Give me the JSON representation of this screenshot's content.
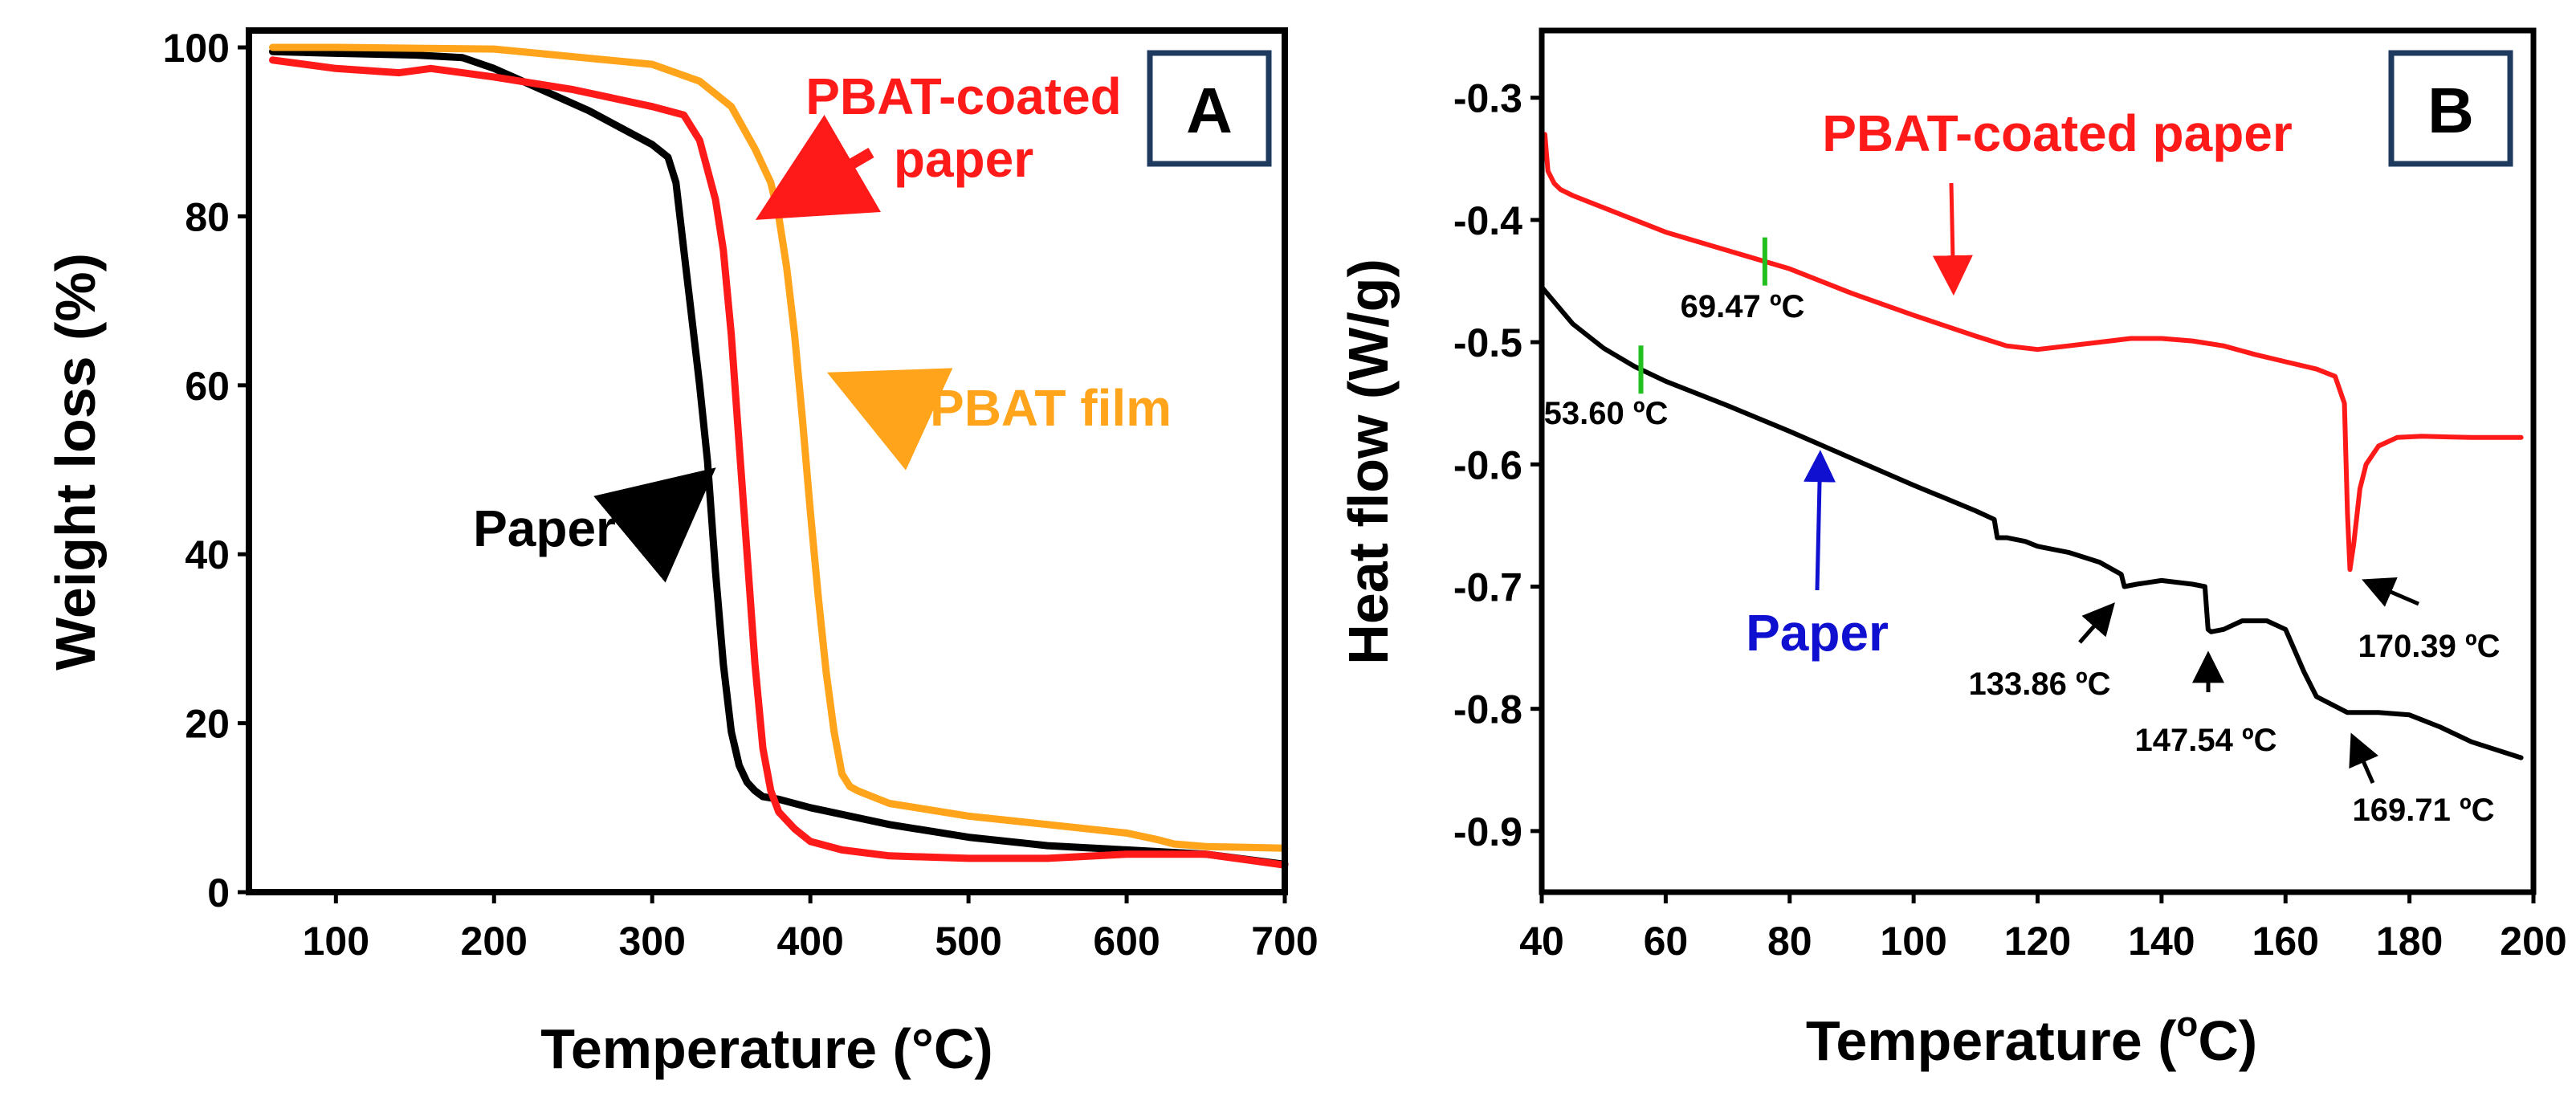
{
  "chart_data": [
    {
      "panel": "A",
      "type": "line",
      "xlabel": "Temperature (°C)",
      "ylabel": "Weight loss (%)",
      "xlim": [
        45,
        700
      ],
      "ylim": [
        0,
        102
      ],
      "xticks": [
        100,
        200,
        300,
        400,
        500,
        600,
        700
      ],
      "yticks": [
        0,
        20,
        40,
        60,
        80,
        100
      ],
      "grid": false,
      "series": [
        {
          "name": "Paper",
          "color": "#000000",
          "x": [
            60,
            100,
            150,
            180,
            200,
            230,
            260,
            280,
            300,
            310,
            315,
            320,
            325,
            330,
            335,
            340,
            345,
            350,
            355,
            360,
            365,
            370,
            380,
            400,
            450,
            500,
            550,
            600,
            650,
            700
          ],
          "y": [
            99.5,
            99.3,
            99.1,
            98.8,
            97.5,
            95,
            92.5,
            90.5,
            88.5,
            87,
            84,
            76,
            68,
            60,
            51,
            38,
            27,
            19,
            15,
            13,
            12,
            11.3,
            11,
            10,
            8,
            6.5,
            5.5,
            5,
            4.5,
            3.3
          ]
        },
        {
          "name": "PBAT-coated paper",
          "color": "#ff1a1a",
          "x": [
            60,
            100,
            140,
            160,
            180,
            200,
            250,
            300,
            320,
            330,
            340,
            345,
            350,
            355,
            360,
            365,
            370,
            375,
            380,
            390,
            400,
            420,
            450,
            500,
            550,
            600,
            650,
            700
          ],
          "y": [
            98.5,
            97.5,
            97,
            97.5,
            97,
            96.5,
            95,
            93,
            92,
            89,
            82,
            76,
            66,
            53,
            40,
            27,
            17,
            12,
            9.5,
            7.5,
            6,
            5,
            4.3,
            4,
            4,
            4.5,
            4.5,
            3.2
          ]
        },
        {
          "name": "PBAT film",
          "color": "#ffa41b",
          "x": [
            60,
            100,
            200,
            300,
            330,
            350,
            365,
            375,
            380,
            385,
            390,
            395,
            400,
            405,
            410,
            415,
            420,
            425,
            430,
            450,
            500,
            550,
            600,
            620,
            630,
            650,
            700
          ],
          "y": [
            100,
            100,
            99.8,
            98,
            96,
            93,
            88,
            84,
            80,
            74,
            66,
            56,
            45,
            35,
            26,
            19,
            14,
            12.5,
            12,
            10.5,
            9,
            8,
            7,
            6.2,
            5.7,
            5.4,
            5.2
          ]
        }
      ],
      "annotations": [
        {
          "text_lines": [
            "PBAT-coated",
            "paper"
          ],
          "color": "#ff1a1a",
          "arrow_to": [
            360,
            79
          ]
        },
        {
          "text_lines": [
            "PBAT film"
          ],
          "color": "#ffa41b",
          "arrow_to": [
            405,
            62
          ]
        },
        {
          "text_lines": [
            "Paper"
          ],
          "color": "#000000",
          "arrow_to": [
            345,
            51
          ]
        }
      ]
    },
    {
      "panel": "B",
      "type": "line",
      "xlabel_main": "Temperature (",
      "xlabel_sup": "o",
      "xlabel_tail": "C)",
      "ylabel": "Heat flow (W/g)",
      "xlim": [
        40,
        200
      ],
      "ylim": [
        -0.95,
        -0.245
      ],
      "xticks": [
        40,
        60,
        80,
        100,
        120,
        140,
        160,
        180,
        200
      ],
      "yticks": [
        -0.3,
        -0.4,
        -0.5,
        -0.6,
        -0.7,
        -0.8,
        -0.9
      ],
      "ytick_labels": [
        "-0.3",
        "-0.4",
        "-0.5",
        "-0.6",
        "-0.7",
        "-0.8",
        "-0.9"
      ],
      "grid": false,
      "series": [
        {
          "name": "PBAT-coated paper",
          "color": "#ff1a1a",
          "x": [
            40.5,
            41,
            42,
            43,
            45,
            50,
            60,
            70,
            80,
            90,
            100,
            110,
            115,
            120,
            125,
            130,
            135,
            140,
            145,
            150,
            155,
            160,
            165,
            168,
            169.5,
            170,
            170.4,
            171,
            172,
            173,
            175,
            178,
            182,
            190,
            198
          ],
          "y": [
            -0.33,
            -0.36,
            -0.37,
            -0.375,
            -0.38,
            -0.39,
            -0.41,
            -0.425,
            -0.44,
            -0.46,
            -0.478,
            -0.495,
            -0.503,
            -0.506,
            -0.503,
            -0.5,
            -0.497,
            -0.497,
            -0.499,
            -0.503,
            -0.51,
            -0.516,
            -0.522,
            -0.528,
            -0.55,
            -0.64,
            -0.686,
            -0.665,
            -0.62,
            -0.6,
            -0.585,
            -0.578,
            -0.577,
            -0.578,
            -0.578
          ],
          "marker_temp": 76,
          "marker_label": "69.47 ºC"
        },
        {
          "name": "Paper",
          "color": "#000000",
          "x": [
            40,
            45,
            50,
            55,
            60,
            70,
            80,
            90,
            100,
            110,
            113,
            113.5,
            115,
            118,
            120,
            125,
            130,
            133.5,
            134,
            136,
            140,
            145,
            147,
            147.5,
            148,
            150,
            153,
            157,
            160,
            163,
            165,
            170,
            175,
            180,
            185,
            190,
            198
          ],
          "y": [
            -0.455,
            -0.485,
            -0.505,
            -0.52,
            -0.532,
            -0.552,
            -0.573,
            -0.595,
            -0.617,
            -0.638,
            -0.645,
            -0.66,
            -0.66,
            -0.663,
            -0.667,
            -0.672,
            -0.68,
            -0.69,
            -0.7,
            -0.698,
            -0.695,
            -0.698,
            -0.7,
            -0.735,
            -0.737,
            -0.735,
            -0.728,
            -0.728,
            -0.735,
            -0.77,
            -0.79,
            -0.803,
            -0.803,
            -0.805,
            -0.815,
            -0.827,
            -0.84
          ],
          "marker_temp": 56,
          "marker_label": "53.60 ºC"
        }
      ],
      "series_labels": [
        {
          "text": "PBAT-coated  paper",
          "color": "#ff1a1a",
          "arrow_to": [
            106.5,
            -0.475
          ]
        },
        {
          "text": "Paper",
          "color": "#1010d0",
          "arrow_to": [
            85,
            -0.575
          ]
        }
      ],
      "peak_labels": [
        {
          "text": "133.86 ºC",
          "arrow_to": [
            133.86,
            -0.705
          ]
        },
        {
          "text": "147.54 ºC",
          "arrow_to": [
            147.54,
            -0.742
          ]
        },
        {
          "text": "170.39 ºC",
          "arrow_to": [
            170.39,
            -0.69
          ]
        },
        {
          "text": "169.71 ºC",
          "arrow_to": [
            169.71,
            -0.81
          ]
        }
      ]
    }
  ]
}
